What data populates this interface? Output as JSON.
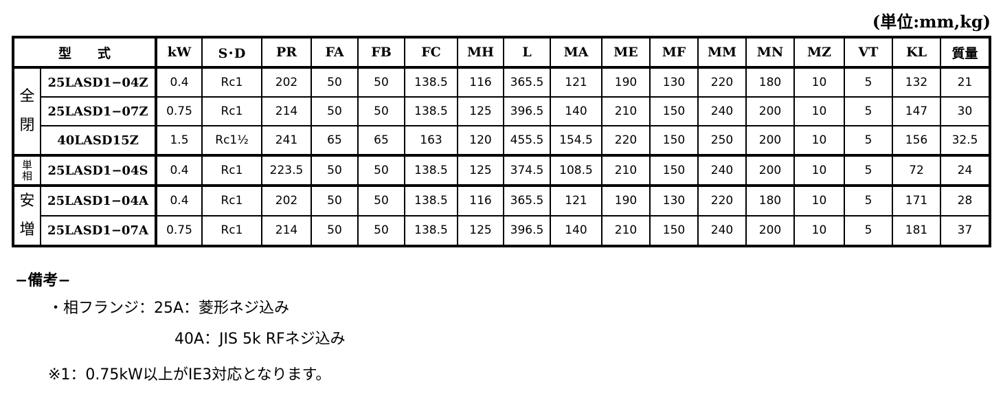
{
  "unit_label": "(単位:mm,kg)",
  "table": {
    "headers": [
      "型　　式",
      "kW",
      "S･D",
      "PR",
      "FA",
      "FB",
      "FC",
      "MH",
      "L",
      "MA",
      "ME",
      "MF",
      "MM",
      "MN",
      "MZ",
      "VT",
      "KL",
      "質量"
    ],
    "groups": [
      {
        "label": "全閉",
        "rows": [
          [
            "25LASD1−04Z",
            "0.4",
            "Rc1",
            "202",
            "50",
            "50",
            "138.5",
            "116",
            "365.5",
            "121",
            "190",
            "130",
            "220",
            "180",
            "10",
            "5",
            "132",
            "21"
          ],
          [
            "25LASD1−07Z",
            "0.75",
            "Rc1",
            "214",
            "50",
            "50",
            "138.5",
            "125",
            "396.5",
            "140",
            "210",
            "150",
            "240",
            "200",
            "10",
            "5",
            "147",
            "30"
          ],
          [
            "40LASD15Z",
            "1.5",
            "Rc1½",
            "241",
            "65",
            "65",
            "163",
            "120",
            "455.5",
            "154.5",
            "220",
            "150",
            "250",
            "200",
            "10",
            "5",
            "156",
            "32.5"
          ]
        ]
      },
      {
        "label": "単相",
        "rows": [
          [
            "25LASD1−04S",
            "0.4",
            "Rc1",
            "223.5",
            "50",
            "50",
            "138.5",
            "125",
            "374.5",
            "108.5",
            "210",
            "150",
            "240",
            "200",
            "10",
            "5",
            "72",
            "24"
          ]
        ]
      },
      {
        "label": "安増",
        "rows": [
          [
            "25LASD1−04A",
            "0.4",
            "Rc1",
            "202",
            "50",
            "50",
            "138.5",
            "116",
            "365.5",
            "121",
            "190",
            "130",
            "220",
            "180",
            "10",
            "5",
            "171",
            "28"
          ],
          [
            "25LASD1−07A",
            "0.75",
            "Rc1",
            "214",
            "50",
            "50",
            "138.5",
            "125",
            "396.5",
            "140",
            "210",
            "150",
            "240",
            "200",
            "10",
            "5",
            "181",
            "37"
          ]
        ]
      }
    ]
  },
  "notes": {
    "title": "−備考−",
    "line1": "・相フランジ：25A：菱形ネジ込み",
    "line2": "40A：JIS 5k RFネジ込み",
    "line3": "※1：0.75kW以上がIE3対応となります。"
  }
}
